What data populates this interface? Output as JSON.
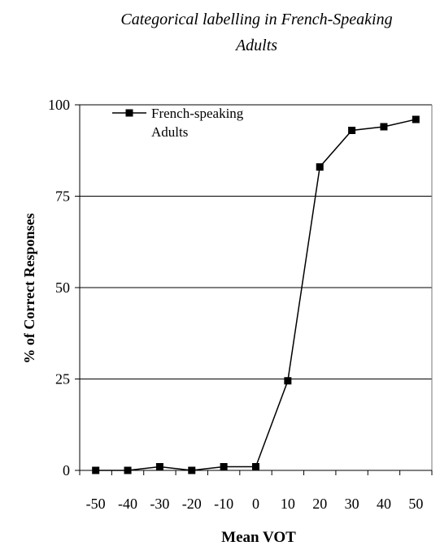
{
  "chart_data": {
    "type": "line",
    "title_lines": [
      "Categorical labelling in French-Speaking",
      "Adults"
    ],
    "xlabel": "Mean VOT",
    "ylabel": "% of Correct Responses",
    "x": [
      -50,
      -40,
      -30,
      -20,
      -10,
      0,
      10,
      20,
      30,
      40,
      50
    ],
    "x_tick_labels": [
      "-50",
      "-40",
      "-30",
      "-20",
      "-10",
      "0",
      "10",
      "20",
      "30",
      "40",
      "50"
    ],
    "y_ticks": [
      0,
      25,
      50,
      75,
      100
    ],
    "y_tick_labels": [
      "0",
      "25",
      "50",
      "75",
      "100"
    ],
    "ylim": [
      0,
      100
    ],
    "grid": true,
    "legend_position": "top-left",
    "series": [
      {
        "name_lines": [
          "French-speaking",
          "Adults"
        ],
        "values": [
          0,
          0,
          1,
          0,
          1,
          1,
          24.5,
          83,
          93,
          94,
          96
        ],
        "color": "#000000",
        "marker": "square"
      }
    ]
  }
}
